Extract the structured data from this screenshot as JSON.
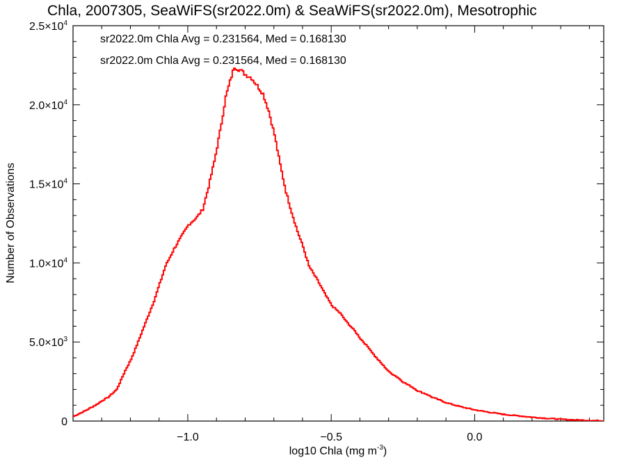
{
  "chart_data": {
    "type": "line",
    "title": "Chla, 2007305, SeaWiFS(sr2022.0m) & SeaWiFS(sr2022.0m), Mesotrophic",
    "xlabel": "log10 Chla (mg m",
    "xlabel_sup": "-3",
    "xlabel_close": ")",
    "ylabel": "Number of Observations",
    "xlim": [
      -1.4,
      0.45
    ],
    "ylim": [
      0,
      25000
    ],
    "xticks": [
      {
        "value": -1.0,
        "label": "−1.0"
      },
      {
        "value": -0.5,
        "label": "−0.5"
      },
      {
        "value": 0.0,
        "label": "0.0"
      }
    ],
    "yticks": [
      {
        "value": 0,
        "mant": "0",
        "exp": ""
      },
      {
        "value": 5000,
        "mant": "5.0×10",
        "exp": "3"
      },
      {
        "value": 10000,
        "mant": "1.0×10",
        "exp": "4"
      },
      {
        "value": 15000,
        "mant": "1.5×10",
        "exp": "4"
      },
      {
        "value": 20000,
        "mant": "2.0×10",
        "exp": "4"
      },
      {
        "value": 25000,
        "mant": "2.5×10",
        "exp": "4"
      }
    ],
    "annotations": [
      {
        "text": "sr2022.0m Chla Avg = 0.231564, Med = 0.168130",
        "color": "#000000"
      },
      {
        "text": "sr2022.0m Chla Avg = 0.231564, Med = 0.168130",
        "color": "#ff0000"
      }
    ],
    "series": [
      {
        "color": "#ff0000",
        "step": "histogram",
        "points": [
          [
            -1.4,
            300
          ],
          [
            -1.36,
            650
          ],
          [
            -1.32,
            1050
          ],
          [
            -1.3,
            1300
          ],
          [
            -1.28,
            1500
          ],
          [
            -1.25,
            2000
          ],
          [
            -1.22,
            3200
          ],
          [
            -1.2,
            3900
          ],
          [
            -1.18,
            4800
          ],
          [
            -1.15,
            6200
          ],
          [
            -1.12,
            7600
          ],
          [
            -1.1,
            8700
          ],
          [
            -1.08,
            9800
          ],
          [
            -1.05,
            10900
          ],
          [
            -1.02,
            11800
          ],
          [
            -1.0,
            12400
          ],
          [
            -0.97,
            12900
          ],
          [
            -0.95,
            13400
          ],
          [
            -0.93,
            14800
          ],
          [
            -0.91,
            16400
          ],
          [
            -0.89,
            18300
          ],
          [
            -0.87,
            20500
          ],
          [
            -0.85,
            21800
          ],
          [
            -0.84,
            22400
          ],
          [
            -0.82,
            22200
          ],
          [
            -0.8,
            21900
          ],
          [
            -0.78,
            21700
          ],
          [
            -0.76,
            21200
          ],
          [
            -0.74,
            20700
          ],
          [
            -0.72,
            19600
          ],
          [
            -0.7,
            18100
          ],
          [
            -0.68,
            16200
          ],
          [
            -0.66,
            14500
          ],
          [
            -0.64,
            13200
          ],
          [
            -0.62,
            12000
          ],
          [
            -0.6,
            11000
          ],
          [
            -0.58,
            9800
          ],
          [
            -0.55,
            8900
          ],
          [
            -0.52,
            7900
          ],
          [
            -0.5,
            7300
          ],
          [
            -0.47,
            6800
          ],
          [
            -0.45,
            6300
          ],
          [
            -0.42,
            5700
          ],
          [
            -0.4,
            5200
          ],
          [
            -0.37,
            4600
          ],
          [
            -0.35,
            4100
          ],
          [
            -0.32,
            3500
          ],
          [
            -0.3,
            3100
          ],
          [
            -0.27,
            2750
          ],
          [
            -0.25,
            2450
          ],
          [
            -0.22,
            2150
          ],
          [
            -0.2,
            1900
          ],
          [
            -0.17,
            1700
          ],
          [
            -0.15,
            1500
          ],
          [
            -0.12,
            1300
          ],
          [
            -0.1,
            1150
          ],
          [
            -0.05,
            900
          ],
          [
            0.0,
            700
          ],
          [
            0.05,
            550
          ],
          [
            0.1,
            420
          ],
          [
            0.15,
            330
          ],
          [
            0.2,
            240
          ],
          [
            0.25,
            170
          ],
          [
            0.3,
            110
          ],
          [
            0.35,
            70
          ],
          [
            0.4,
            40
          ],
          [
            0.45,
            20
          ]
        ]
      }
    ]
  }
}
